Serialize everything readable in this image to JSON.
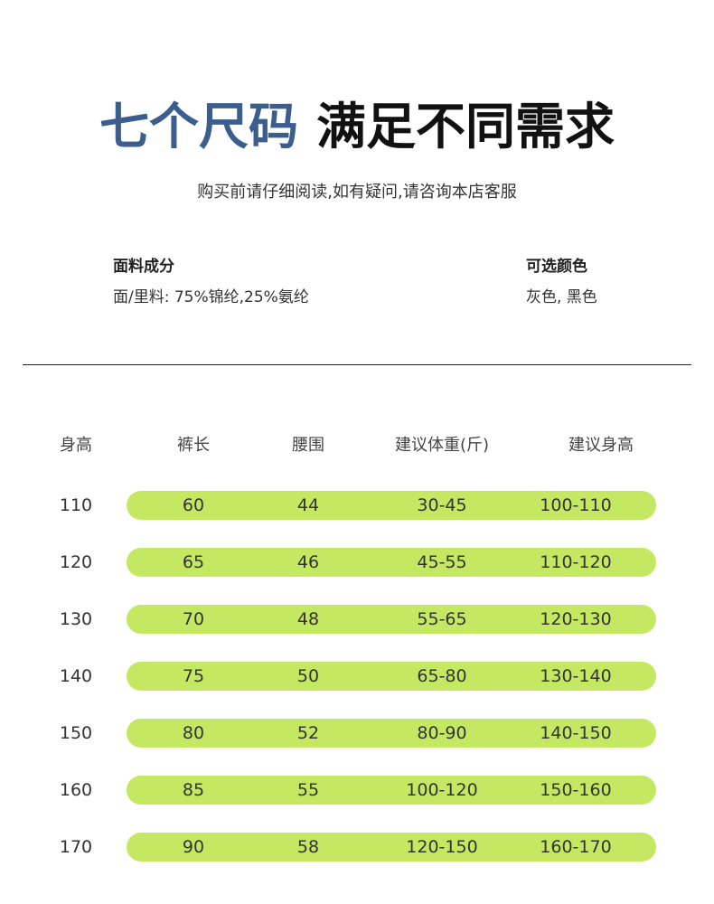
{
  "title": {
    "highlight": "七个尺码",
    "rest": "满足不同需求"
  },
  "subtitle": "购买前请仔细阅读,如有疑问,请咨询本店客服",
  "info": {
    "fabric": {
      "label": "面料成分",
      "value": "面/里料: 75%锦纶,25%氨纶"
    },
    "colors": {
      "label": "可选颜色",
      "value": "灰色, 黑色"
    }
  },
  "table": {
    "headers": [
      "身高",
      "裤长",
      "腰围",
      "建议体重(斤)",
      "建议身高"
    ],
    "rows": [
      [
        "110",
        "60",
        "44",
        "30-45",
        "100-110"
      ],
      [
        "120",
        "65",
        "46",
        "45-55",
        "110-120"
      ],
      [
        "130",
        "70",
        "48",
        "55-65",
        "120-130"
      ],
      [
        "140",
        "75",
        "50",
        "65-80",
        "130-140"
      ],
      [
        "150",
        "80",
        "52",
        "80-90",
        "140-150"
      ],
      [
        "160",
        "85",
        "55",
        "100-120",
        "150-160"
      ],
      [
        "170",
        "90",
        "58",
        "120-150",
        "160-170"
      ]
    ]
  },
  "style_colors": {
    "title_accent": "#3b5e8f",
    "title_main": "#111111",
    "row_highlight": "#c4e862",
    "text": "#333333",
    "divider": "#222222"
  }
}
